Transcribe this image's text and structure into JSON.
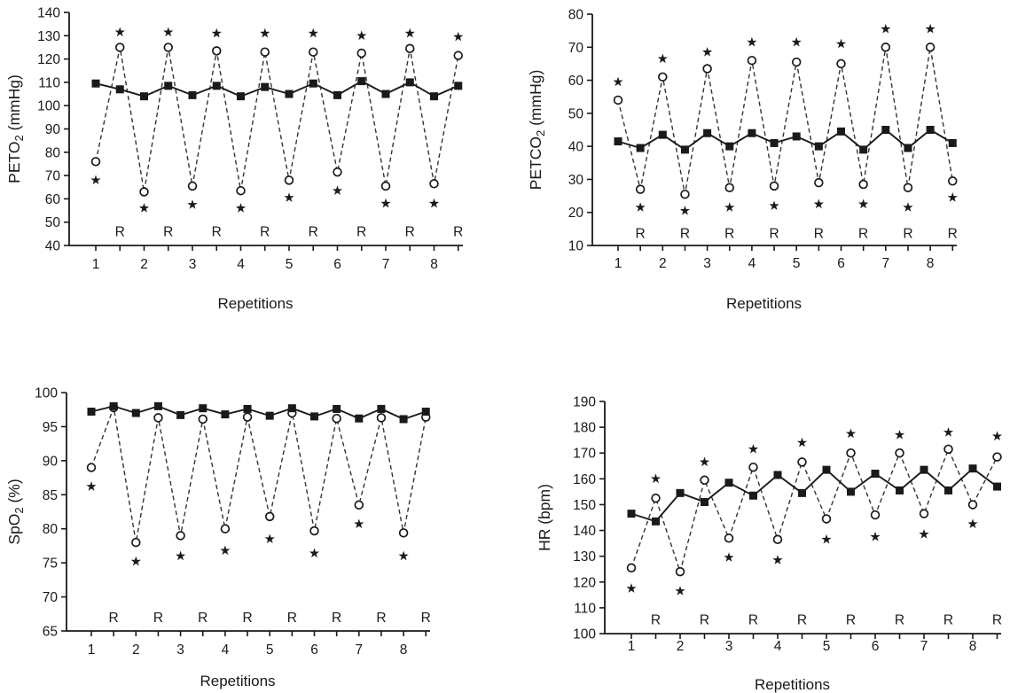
{
  "figure": {
    "background": "#ffffff",
    "ink_color": "#1a1a1a",
    "significance_symbol": "*",
    "recovery_symbol": "R",
    "series_encoding": {
      "filled_square_solid": "filled squares, solid line",
      "open_circle_dashed": "open circles, dashed line"
    }
  },
  "chart_data": [
    {
      "id": "peto2",
      "type": "line",
      "ylabel": {
        "pre": "PETO",
        "sub": "2",
        "post": " (mmHg)"
      },
      "xlabel": "Repetitions",
      "ylim": [
        40,
        140
      ],
      "yticks": [
        40,
        50,
        60,
        70,
        80,
        90,
        100,
        110,
        120,
        130,
        140
      ],
      "xticks": [
        1,
        2,
        3,
        4,
        5,
        6,
        7,
        8
      ],
      "x_range": [
        1,
        8.5
      ],
      "x_minor_step": 0.5,
      "x": [
        1,
        1.5,
        2,
        2.5,
        3,
        3.5,
        4,
        4.5,
        5,
        5.5,
        6,
        6.5,
        7,
        7.5,
        8,
        8.5
      ],
      "series": [
        {
          "name": "filled-squares-solid",
          "marker": "square",
          "linestyle": "solid",
          "values": [
            109.5,
            107,
            104,
            108.5,
            104.5,
            108.5,
            104,
            108,
            105,
            109.5,
            104.5,
            110.5,
            105,
            110,
            104,
            108.5
          ]
        },
        {
          "name": "open-circles-dashed",
          "marker": "circle",
          "linestyle": "dashed",
          "values": [
            76,
            125,
            63,
            125,
            65.5,
            123.5,
            63.5,
            123,
            68,
            123,
            71.5,
            122.5,
            65.5,
            124.5,
            66.5,
            121.5
          ]
        }
      ],
      "asterisks": [
        [
          1,
          68
        ],
        [
          1.5,
          131.5
        ],
        [
          2,
          56
        ],
        [
          2.5,
          131.5
        ],
        [
          3,
          57.5
        ],
        [
          3.5,
          131
        ],
        [
          4,
          56
        ],
        [
          4.5,
          131
        ],
        [
          5,
          60.5
        ],
        [
          5.5,
          131
        ],
        [
          6,
          63.5
        ],
        [
          6.5,
          130
        ],
        [
          7,
          58
        ],
        [
          7.5,
          131
        ],
        [
          8,
          58
        ],
        [
          8.5,
          129.5
        ]
      ],
      "r_labels": {
        "symbol": "R",
        "positions": [
          1.5,
          2.5,
          3.5,
          4.5,
          5.5,
          6.5,
          7.5,
          8.5
        ],
        "y": 46
      }
    },
    {
      "id": "petco2",
      "type": "line",
      "ylabel": {
        "pre": "PETCO",
        "sub": "2",
        "post": " (mmHg)"
      },
      "xlabel": "Repetitions",
      "ylim": [
        10,
        80
      ],
      "yticks": [
        10,
        20,
        30,
        40,
        50,
        60,
        70,
        80
      ],
      "xticks": [
        1,
        2,
        3,
        4,
        5,
        6,
        7,
        8
      ],
      "x_range": [
        1,
        8.5
      ],
      "x_minor_step": 0.5,
      "x": [
        1,
        1.5,
        2,
        2.5,
        3,
        3.5,
        4,
        4.5,
        5,
        5.5,
        6,
        6.5,
        7,
        7.5,
        8,
        8.5
      ],
      "series": [
        {
          "name": "filled-squares-solid",
          "marker": "square",
          "linestyle": "solid",
          "values": [
            41.5,
            39.5,
            43.5,
            39,
            44,
            40,
            44,
            41,
            43,
            40,
            44.5,
            39,
            45,
            39.5,
            45,
            41
          ]
        },
        {
          "name": "open-circles-dashed",
          "marker": "circle",
          "linestyle": "dashed",
          "values": [
            54,
            27,
            61,
            25.5,
            63.5,
            27.5,
            66,
            28,
            65.5,
            29,
            65,
            28.5,
            70,
            27.5,
            70,
            29.5
          ]
        }
      ],
      "asterisks": [
        [
          1,
          59.5
        ],
        [
          1.5,
          21.5
        ],
        [
          2,
          66.5
        ],
        [
          2.5,
          20.5
        ],
        [
          3,
          68.5
        ],
        [
          3.5,
          21.5
        ],
        [
          4,
          71.5
        ],
        [
          4.5,
          22
        ],
        [
          5,
          71.5
        ],
        [
          5.5,
          22.5
        ],
        [
          6,
          71
        ],
        [
          6.5,
          22.5
        ],
        [
          7,
          75.5
        ],
        [
          7.5,
          21.5
        ],
        [
          8,
          75.5
        ],
        [
          8.5,
          24.5
        ]
      ],
      "r_labels": {
        "symbol": "R",
        "positions": [
          1.5,
          2.5,
          3.5,
          4.5,
          5.5,
          6.5,
          7.5,
          8.5
        ],
        "y": 13.8
      }
    },
    {
      "id": "spo2",
      "type": "line",
      "ylabel": {
        "pre": "SpO",
        "sub": "2",
        "post": " (%)"
      },
      "xlabel": "Repetitions",
      "ylim": [
        65,
        100
      ],
      "yticks": [
        65,
        70,
        75,
        80,
        85,
        90,
        95,
        100
      ],
      "xticks": [
        1,
        2,
        3,
        4,
        5,
        6,
        7,
        8
      ],
      "x_range": [
        1,
        8.5
      ],
      "x_minor_step": 0.5,
      "x": [
        1,
        1.5,
        2,
        2.5,
        3,
        3.5,
        4,
        4.5,
        5,
        5.5,
        6,
        6.5,
        7,
        7.5,
        8,
        8.5
      ],
      "series": [
        {
          "name": "filled-squares-solid",
          "marker": "square",
          "linestyle": "solid",
          "values": [
            97.2,
            98,
            97,
            98,
            96.7,
            97.7,
            96.8,
            97.6,
            96.6,
            97.7,
            96.5,
            97.6,
            96.2,
            97.6,
            96.1,
            97.2
          ]
        },
        {
          "name": "open-circles-dashed",
          "marker": "circle",
          "linestyle": "dashed",
          "values": [
            89,
            97.8,
            78,
            96.3,
            79,
            96.1,
            80,
            96.4,
            81.8,
            97,
            79.7,
            96.2,
            83.5,
            96.3,
            79.4,
            96.4
          ]
        }
      ],
      "asterisks": [
        [
          1,
          86.2
        ],
        [
          2,
          75.2
        ],
        [
          3,
          76
        ],
        [
          4,
          76.8
        ],
        [
          5,
          78.5
        ],
        [
          6,
          76.4
        ],
        [
          7,
          80.7
        ],
        [
          8,
          76
        ]
      ],
      "r_labels": {
        "symbol": "R",
        "positions": [
          1.5,
          2.5,
          3.5,
          4.5,
          5.5,
          6.5,
          7.5,
          8.5
        ],
        "y": 67
      }
    },
    {
      "id": "hr",
      "type": "line",
      "ylabel": {
        "pre": "HR (bpm)",
        "sub": "",
        "post": ""
      },
      "xlabel": "Repetitions",
      "ylim": [
        100,
        190
      ],
      "yticks": [
        100,
        110,
        120,
        130,
        140,
        150,
        160,
        170,
        180,
        190
      ],
      "xticks": [
        1,
        2,
        3,
        4,
        5,
        6,
        7,
        8
      ],
      "x_range": [
        1,
        8.5
      ],
      "x_minor_step": 0.5,
      "x": [
        1,
        1.5,
        2,
        2.5,
        3,
        3.5,
        4,
        4.5,
        5,
        5.5,
        6,
        6.5,
        7,
        7.5,
        8,
        8.5
      ],
      "series": [
        {
          "name": "filled-squares-solid",
          "marker": "square",
          "linestyle": "solid",
          "values": [
            146.5,
            143.5,
            154.5,
            151,
            158.5,
            153.5,
            161.5,
            154.5,
            163.5,
            155,
            162,
            155.5,
            163.5,
            155.5,
            164,
            157
          ]
        },
        {
          "name": "open-circles-dashed",
          "marker": "circle",
          "linestyle": "dashed",
          "values": [
            125.5,
            152.5,
            124,
            159.5,
            137,
            164.5,
            136.5,
            166.5,
            144.5,
            170,
            146,
            170,
            146.5,
            171.5,
            150,
            168.5
          ]
        }
      ],
      "asterisks": [
        [
          1,
          117.5
        ],
        [
          1.5,
          160
        ],
        [
          2,
          116.5
        ],
        [
          2.5,
          166.5
        ],
        [
          3,
          129.5
        ],
        [
          3.5,
          171.5
        ],
        [
          4,
          128.5
        ],
        [
          4.5,
          174
        ],
        [
          5,
          136.5
        ],
        [
          5.5,
          177.5
        ],
        [
          6,
          137.5
        ],
        [
          6.5,
          177
        ],
        [
          7,
          138.5
        ],
        [
          7.5,
          178
        ],
        [
          8,
          142.5
        ],
        [
          8.5,
          176.5
        ]
      ],
      "r_labels": {
        "symbol": "R",
        "positions": [
          1.5,
          2.5,
          3.5,
          4.5,
          5.5,
          6.5,
          7.5,
          8.5
        ],
        "y": 105.5
      }
    }
  ]
}
